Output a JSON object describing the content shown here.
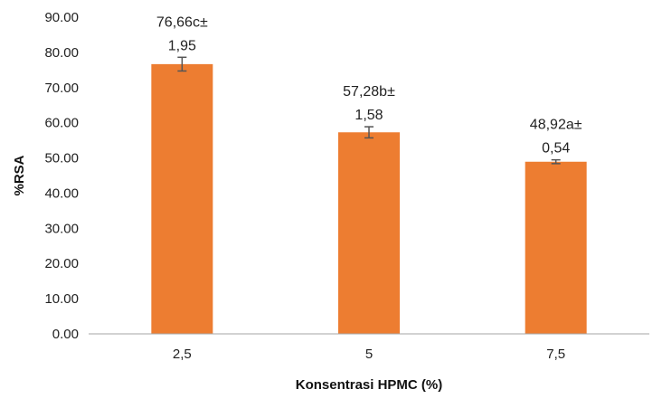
{
  "chart_data": {
    "type": "bar",
    "categories": [
      "2,5",
      "5",
      "7,5"
    ],
    "values": [
      76.66,
      57.28,
      48.92
    ],
    "errors": [
      1.95,
      1.58,
      0.54
    ],
    "data_labels": [
      [
        "76,66c±",
        "1,95"
      ],
      [
        "57,28b±",
        "1,58"
      ],
      [
        "48,92a±",
        "0,54"
      ]
    ],
    "xlabel": "Konsentrasi HPMC (%)",
    "ylabel": "%RSA",
    "ylim": [
      0,
      90
    ],
    "yticks": [
      "0.00",
      "10.00",
      "20.00",
      "30.00",
      "40.00",
      "50.00",
      "60.00",
      "70.00",
      "80.00",
      "90.00"
    ],
    "grid": false,
    "legend": "none",
    "bar_color": "#ED7D31",
    "error_bar_color": "#555555"
  }
}
